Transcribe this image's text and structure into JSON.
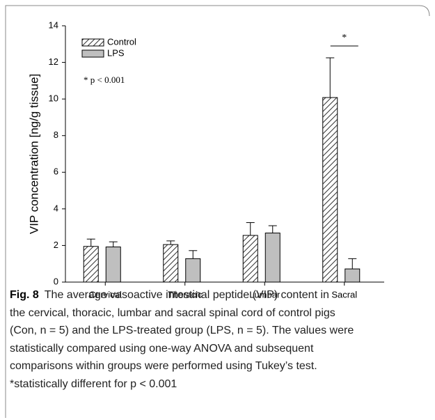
{
  "chart_data": {
    "type": "bar",
    "y_label": "VIP concentration [ng/g tissue]",
    "categories": [
      "Cervical",
      "Thoracic",
      "Lumbar",
      "Sacral"
    ],
    "series": [
      {
        "name": "Control",
        "color": "#ffffff",
        "hatch": true,
        "values": [
          1.95,
          2.05,
          2.55,
          10.08
        ],
        "errors": [
          0.4,
          0.2,
          0.7,
          2.17
        ]
      },
      {
        "name": "LPS",
        "color": "#bfbfbf",
        "hatch": false,
        "values": [
          1.92,
          1.28,
          2.68,
          0.72
        ],
        "errors": [
          0.28,
          0.44,
          0.4,
          0.56
        ]
      }
    ],
    "ylim": [
      0,
      14
    ],
    "yticks": [
      0,
      2,
      4,
      6,
      8,
      10,
      12,
      14
    ],
    "annotations": [
      "* p < 0.001",
      "*"
    ],
    "legend": "upper left",
    "caption": {
      "label": "Fig. 8",
      "lines": [
        "The average vasoactive intestinal peptide (VIP) content in",
        "the cervical, thoracic, lumbar and sacral spinal cord of control pigs",
        "(Con, n = 5) and the LPS-treated group (LPS, n = 5). The values were",
        "statistically compared using one-way ANOVA and subsequent",
        "comparisons within groups were performed using Tukey’s test.",
        "*statistically different for p < 0.001"
      ]
    }
  }
}
